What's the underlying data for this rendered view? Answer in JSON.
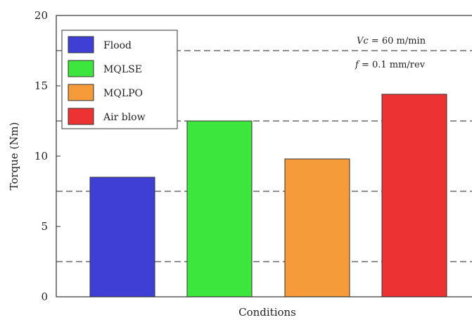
{
  "chart_data": {
    "type": "bar",
    "categories": [
      "Flood",
      "MQLSE",
      "MQLPO",
      "Air blow"
    ],
    "values": [
      8.5,
      12.5,
      9.8,
      14.4
    ],
    "colors": [
      "#3f3fd6",
      "#3ce63c",
      "#f59b3a",
      "#ec3232"
    ],
    "xlabel": "Conditions",
    "ylabel": "Torque (Nm)",
    "ylim": [
      0,
      20
    ],
    "yticks": [
      0,
      5,
      10,
      15,
      20
    ],
    "grid": "dashed horizontal at 2.5, 7.5, 12.5, 17.5",
    "grid_lines": [
      2.5,
      7.5,
      12.5,
      17.5
    ],
    "legend_placement": "top-left",
    "legend": [
      {
        "name": "Flood",
        "color": "#3f3fd6"
      },
      {
        "name": "MQLSE",
        "color": "#3ce63c"
      },
      {
        "name": "MQLPO",
        "color": "#f59b3a"
      },
      {
        "name": "Air blow",
        "color": "#ec3232"
      }
    ],
    "annotations": [
      {
        "symbol": "Vc",
        "text": " = 60 m/min"
      },
      {
        "symbol": "f",
        "text": " = 0.1 mm/rev"
      }
    ]
  }
}
